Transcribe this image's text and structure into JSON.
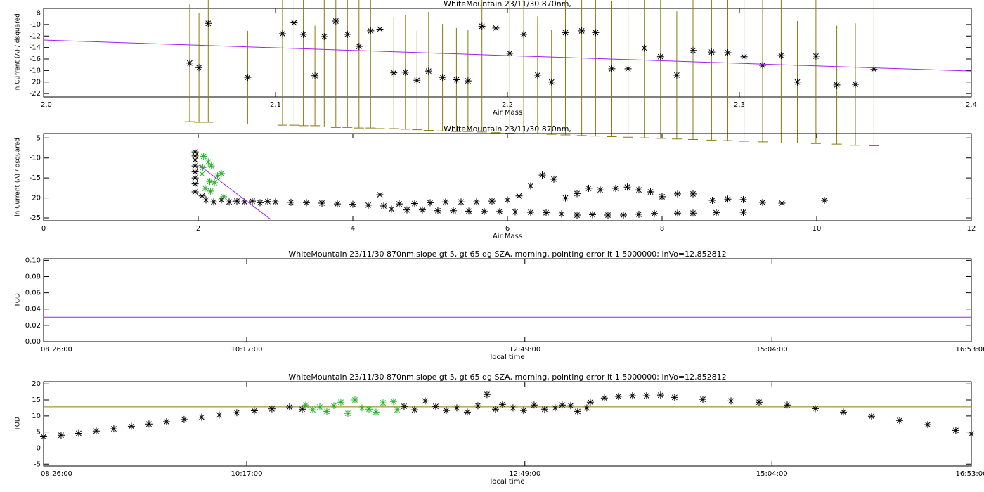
{
  "chart_data": [
    {
      "type": "scatter",
      "title": "WhiteMountain 23/11/30 870nm,",
      "x_label": "Air Mass",
      "y_label": "ln Current (A) / dsquared",
      "xlim": [
        2.0,
        2.4
      ],
      "xticks": [
        {
          "value": 2.0,
          "label": "2.0"
        },
        2.1,
        2.2,
        2.3,
        {
          "value": 2.4,
          "label": "2.4"
        }
      ],
      "ylim": [
        -22.6,
        -7.2
      ],
      "yticks": [
        -22,
        -20,
        -18,
        -16,
        -14,
        -12,
        -10,
        -8
      ],
      "series": [
        {
          "style": "asterisk",
          "color": "#000000",
          "error_color": "#8b7b10",
          "x": [
            2.063,
            2.067,
            2.071,
            2.088,
            2.103,
            2.108,
            2.112,
            2.117,
            2.121,
            2.126,
            2.131,
            2.136,
            2.141,
            2.145,
            2.151,
            2.156,
            2.161,
            2.166,
            2.172,
            2.178,
            2.183,
            2.189,
            2.195,
            2.201,
            2.207,
            2.213,
            2.219,
            2.225,
            2.232,
            2.238,
            2.245,
            2.252,
            2.259,
            2.266,
            2.273,
            2.28,
            2.288,
            2.295,
            2.302,
            2.31,
            2.318,
            2.325,
            2.333,
            2.342,
            2.35,
            2.358
          ],
          "values": [
            -16.7,
            -17.5,
            -9.8,
            -19.2,
            -11.6,
            -9.7,
            -11.7,
            -18.9,
            -12.1,
            -9.4,
            -11.7,
            -13.8,
            -11.1,
            -10.8,
            -18.4,
            -18.3,
            -19.7,
            -18.1,
            -19.2,
            -19.6,
            -19.8,
            -10.3,
            -10.6,
            -15.0,
            -11.7,
            -18.8,
            -20.0,
            -11.4,
            -11.1,
            -11.4,
            -17.7,
            -17.7,
            -14.1,
            -15.6,
            -18.8,
            -14.5,
            -14.8,
            -14.9,
            -15.6,
            -17.1,
            -15.4,
            -20.0,
            -15.5,
            -20.5,
            -20.4,
            -17.8
          ],
          "errors": [
            10.2,
            9.5,
            17.2,
            8.1,
            15.9,
            17.8,
            15.9,
            8.7,
            15.7,
            18.5,
            16.2,
            14.2,
            16.9,
            17.3,
            9.7,
            9.9,
            8.6,
            10.3,
            9.3,
            9.0,
            8.8,
            18.4,
            18.2,
            13.9,
            17.3,
            10.2,
            9.1,
            17.8,
            18.2,
            18.0,
            11.8,
            11.9,
            15.6,
            14.2,
            11.1,
            15.5,
            15.3,
            15.3,
            14.7,
            13.3,
            15.2,
            10.6,
            15.2,
            10.3,
            10.6,
            13.3
          ]
        },
        {
          "style": "line",
          "color": "#a020f0",
          "x": [
            2.0,
            2.4
          ],
          "values": [
            -12.7,
            -18.1
          ]
        }
      ]
    },
    {
      "type": "scatter",
      "title": "WhiteMountain 23/11/30 870nm,",
      "x_label": "Air Mass",
      "y_label": "ln Current (A) / dsquared",
      "xlim": [
        0,
        12
      ],
      "xticks": [
        0,
        2,
        4,
        6,
        8,
        10,
        12
      ],
      "ylim": [
        -25.7,
        -3.9
      ],
      "yticks": [
        -25,
        -20,
        -15,
        -10,
        -5
      ],
      "series": [
        {
          "style": "asterisk",
          "color": "#000000",
          "x": [
            1.96,
            1.96,
            1.96,
            1.96,
            1.96,
            1.96,
            1.96,
            1.96,
            2.05,
            2.1,
            2.2,
            2.3,
            2.4,
            2.5,
            2.6,
            2.7,
            2.8,
            2.9,
            3.0,
            3.2,
            3.4,
            3.6,
            3.8,
            4.0,
            4.2,
            4.35,
            4.4,
            4.6,
            4.8,
            5.0,
            5.2,
            5.4,
            5.6,
            5.8,
            6.0,
            6.15,
            6.3,
            6.45,
            6.6,
            4.5,
            4.7,
            4.9,
            5.1,
            5.3,
            5.5,
            5.7,
            5.9,
            6.1,
            6.3,
            6.5,
            6.7,
            6.9,
            7.1,
            7.3,
            7.5,
            7.7,
            7.9,
            8.2,
            8.4,
            8.7,
            9.05,
            6.75,
            6.9,
            7.05,
            7.2,
            7.4,
            7.55,
            7.7,
            7.85,
            8.0,
            8.2,
            8.4,
            8.65,
            8.85,
            9.05,
            9.3,
            9.55,
            10.1
          ],
          "values": [
            -8.5,
            -9.5,
            -10.5,
            -12,
            -13.5,
            -15,
            -16.5,
            -18.5,
            -19.5,
            -20.5,
            -21,
            -20.5,
            -21,
            -20.8,
            -21,
            -20.8,
            -21.2,
            -20.9,
            -21,
            -21.1,
            -21.2,
            -21.3,
            -21.5,
            -21.6,
            -21.8,
            -19.2,
            -22,
            -21.5,
            -21.4,
            -21.2,
            -21,
            -21,
            -21,
            -20.8,
            -20.5,
            -19.5,
            -17,
            -14.3,
            -15.3,
            -22.8,
            -23,
            -23,
            -23.2,
            -23.2,
            -23.3,
            -23.4,
            -23.4,
            -23.5,
            -23.6,
            -23.7,
            -24,
            -24.3,
            -24.2,
            -24.3,
            -24.3,
            -24.1,
            -23.9,
            -23.8,
            -23.8,
            -23.7,
            -23.6,
            -20,
            -18.9,
            -17.6,
            -18,
            -17.6,
            -17.3,
            -18,
            -18.5,
            -19.7,
            -19,
            -19,
            -20.6,
            -20.3,
            -20.4,
            -21.1,
            -21.3,
            -20.6
          ]
        },
        {
          "style": "asterisk",
          "color": "#22b022",
          "x": [
            2.07,
            2.13,
            2.17,
            2.06,
            2.09,
            2.16,
            2.25,
            2.3,
            2.21,
            2.33,
            2.15,
            2.05
          ],
          "values": [
            -9.6,
            -11,
            -12,
            -12.4,
            -17.6,
            -18.3,
            -14.5,
            -13.9,
            -16.2,
            -19.7,
            -15.9,
            -14
          ]
        },
        {
          "style": "line",
          "color": "#a020f0",
          "x": [
            2.01,
            2.94
          ],
          "values": [
            -11.8,
            -25.4
          ]
        }
      ]
    },
    {
      "type": "scatter",
      "title": "WhiteMountain 23/11/30 870nm,slope gt 5, gt 65 dg SZA, morning, pointing error lt 1.5000000; lnVo=12.852812",
      "x_label": "local time",
      "y_label": "TOD",
      "xlim": [
        8.4333,
        16.8833
      ],
      "xticks": [
        {
          "value": 8.4333,
          "label": "08:26:00"
        },
        {
          "value": 10.2833,
          "label": "10:17:00"
        },
        {
          "value": 12.8167,
          "label": "12:49:00"
        },
        {
          "value": 15.0667,
          "label": "15:04:00"
        },
        {
          "value": 16.8833,
          "label": "16:53:00"
        }
      ],
      "ylim": [
        0,
        0.102
      ],
      "yticks": [
        {
          "value": 0,
          "label": "0.00"
        },
        {
          "value": 0.02,
          "label": "0.02"
        },
        {
          "value": 0.04,
          "label": "0.04"
        },
        {
          "value": 0.06,
          "label": "0.06"
        },
        {
          "value": 0.08,
          "label": "0.08"
        },
        {
          "value": 0.1,
          "label": "0.10"
        }
      ],
      "hlines": [
        {
          "value": 0.03,
          "color": "#a020f0"
        }
      ],
      "series": []
    },
    {
      "type": "scatter",
      "title": "WhiteMountain 23/11/30 870nm,slope gt 5, gt 65 dg SZA, morning, pointing error lt 1.5000000; lnVo=12.852812",
      "x_label": "local time",
      "y_label": "TOD",
      "xlim": [
        8.4333,
        16.8833
      ],
      "xticks": [
        {
          "value": 8.4333,
          "label": "08:26:00"
        },
        {
          "value": 10.2833,
          "label": "10:17:00"
        },
        {
          "value": 12.8167,
          "label": "12:49:00"
        },
        {
          "value": 15.0667,
          "label": "15:04:00"
        },
        {
          "value": 16.8833,
          "label": "16:53:00"
        }
      ],
      "ylim": [
        -5.6,
        20.7
      ],
      "yticks": [
        -5,
        0,
        5,
        10,
        15,
        20
      ],
      "hlines": [
        {
          "value": 12.85,
          "color": "#8b7b10"
        },
        {
          "value": 0,
          "color": "#a020f0"
        }
      ],
      "series": [
        {
          "style": "asterisk",
          "color": "#000000",
          "x": [
            8.433,
            8.593,
            8.753,
            8.913,
            9.073,
            9.233,
            9.393,
            9.553,
            9.713,
            9.873,
            10.033,
            10.193,
            10.353,
            10.513,
            10.673,
            10.789,
            11.717,
            11.813,
            11.909,
            12.005,
            12.101,
            12.197,
            12.293,
            12.389,
            12.472,
            12.549,
            12.613,
            12.709,
            12.805,
            12.901,
            12.997,
            13.093,
            13.157,
            13.234,
            13.298,
            13.381,
            13.413,
            13.541,
            13.669,
            13.797,
            13.925,
            14.053,
            14.181,
            14.438,
            14.694,
            14.95,
            15.206,
            15.462,
            15.718,
            15.974,
            16.23,
            16.486,
            16.742,
            16.883
          ],
          "values": [
            3.5,
            4.0,
            4.6,
            5.3,
            6.0,
            6.8,
            7.5,
            8.2,
            8.9,
            9.6,
            10.3,
            11.0,
            11.6,
            12.2,
            12.8,
            12.1,
            13.0,
            11.9,
            14.7,
            13.0,
            11.7,
            12.5,
            11.2,
            13.2,
            16.7,
            12.1,
            13.6,
            12.5,
            11.7,
            13.4,
            12.1,
            12.5,
            13.4,
            13.2,
            11.4,
            12.5,
            14.3,
            15.6,
            16.1,
            16.3,
            16.3,
            16.5,
            15.8,
            15.2,
            14.7,
            14.3,
            13.4,
            12.3,
            11.2,
            9.9,
            8.6,
            7.3,
            5.5,
            4.4
          ]
        },
        {
          "style": "asterisk",
          "color": "#22b022",
          "x": [
            10.821,
            10.885,
            10.949,
            11.013,
            11.077,
            11.141,
            11.205,
            11.269,
            11.333,
            11.397,
            11.461,
            11.525,
            11.621,
            11.653
          ],
          "values": [
            13.4,
            11.9,
            12.8,
            11.4,
            13.2,
            14.3,
            10.8,
            15.0,
            12.5,
            12.1,
            11.2,
            14.1,
            14.5,
            11.9
          ]
        }
      ]
    }
  ]
}
